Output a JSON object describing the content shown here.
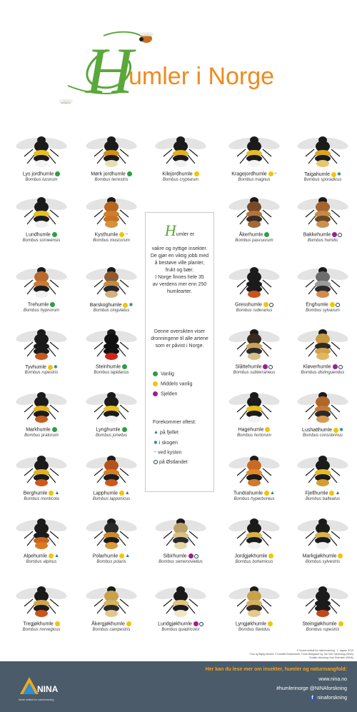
{
  "title": {
    "cap": "H",
    "rest": "umler i Norge"
  },
  "legend_colors": {
    "common": "#2e9e45",
    "medium": "#f2c500",
    "rare": "#9b1f91",
    "marker": "#1a7f86"
  },
  "bees": [
    {
      "name": "Lys jordhumle",
      "latin": "Bombus lucorum",
      "freq": "common",
      "marks": [],
      "colors": [
        "#1b1b1b",
        "#e8c020",
        "#1b1b1b",
        "#f3f3f3"
      ]
    },
    {
      "name": "Mørk jordhumle",
      "latin": "Bombus terrestris",
      "freq": "common",
      "marks": [],
      "colors": [
        "#1b1b1b",
        "#d08f18",
        "#1b1b1b",
        "#e9ddb8"
      ]
    },
    {
      "name": "Kilejordhumle",
      "latin": "Bombus cryptarum",
      "freq": "medium",
      "marks": [],
      "colors": [
        "#1b1b1b",
        "#e0b220",
        "#1b1b1b",
        "#f1f1f1"
      ]
    },
    {
      "name": "Kragejordhumle",
      "latin": "Bombus magnus",
      "freq": "medium",
      "marks": [
        "coast"
      ],
      "colors": [
        "#1b1b1b",
        "#e6bd25",
        "#1b1b1b",
        "#f3f3f3"
      ]
    },
    {
      "name": "Taigahumle",
      "latin": "Bombus sporadicus",
      "freq": "medium",
      "marks": [
        "forest"
      ],
      "colors": [
        "#1b1b1b",
        "#d9a51f",
        "#1b1b1b",
        "#e6c770"
      ]
    },
    {
      "name": "Lundhumle",
      "latin": "Bombus soroeensis",
      "freq": "common",
      "marks": [],
      "colors": [
        "#1b1b1b",
        "#e8bf22",
        "#1b1b1b",
        "#f0f0f0"
      ]
    },
    {
      "name": "Kysthumle",
      "latin": "Bombus muscorum",
      "freq": "medium",
      "marks": [
        "coast"
      ],
      "colors": [
        "#b7661e",
        "#cf7f28",
        "#c77224",
        "#d8913b"
      ]
    },
    {
      "name": "Åkerhumle",
      "latin": "Bombus pascuorum",
      "freq": "common",
      "marks": [],
      "colors": [
        "#7a4a25",
        "#b0743f",
        "#3b2b22",
        "#a06a3a"
      ]
    },
    {
      "name": "Bakkehumle",
      "latin": "Bombus humilis",
      "freq": "rare",
      "marks": [
        "east"
      ],
      "colors": [
        "#a5652d",
        "#c48a46",
        "#6a4626",
        "#c9924f"
      ]
    },
    {
      "name": "Trehumle",
      "latin": "Bombus hypnorum",
      "freq": "common",
      "marks": [],
      "colors": [
        "#b96a2e",
        "#c97a38",
        "#1b1b1b",
        "#f1f1f1"
      ]
    },
    {
      "name": "Barskoghumle",
      "latin": "Bombus cingulatus",
      "freq": "medium",
      "marks": [
        "forest"
      ],
      "colors": [
        "#8f5a2c",
        "#bf8a4e",
        "#262626",
        "#d2b080"
      ]
    },
    {
      "name": "Gresshumle",
      "latin": "Bombus ruderarius",
      "freq": "medium",
      "marks": [
        "east"
      ],
      "colors": [
        "#1b1b1b",
        "#1b1b1b",
        "#1b1b1b",
        "#c9531f"
      ]
    },
    {
      "name": "Enghumle",
      "latin": "Bombus sylvarum",
      "freq": "medium",
      "marks": [
        "east"
      ],
      "colors": [
        "#6d6d6d",
        "#9a9a9a",
        "#2a2a2a",
        "#d48a4f"
      ]
    },
    {
      "name": "Tyvhumle",
      "latin": "Bombus rupestris",
      "freq": "medium",
      "marks": [
        "forest"
      ],
      "colors": [
        "#1b1b1b",
        "#1b1b1b",
        "#1b1b1b",
        "#c45a22"
      ]
    },
    {
      "name": "Steinhumle",
      "latin": "Bombus lapidarius",
      "freq": "common",
      "marks": [],
      "colors": [
        "#111111",
        "#111111",
        "#111111",
        "#d0261a"
      ]
    },
    {
      "name": "Slåttehumle",
      "latin": "Bombus subterraneus",
      "freq": "rare",
      "marks": [
        "east"
      ],
      "colors": [
        "#3a2a1f",
        "#c9a25a",
        "#2a2a2a",
        "#d8c08a"
      ]
    },
    {
      "name": "Kløverhumle",
      "latin": "Bombus distinguendus",
      "freq": "rare",
      "marks": [
        "east"
      ],
      "colors": [
        "#c79a3f",
        "#2a2a2a",
        "#d0a34a",
        "#e0b860"
      ]
    },
    {
      "name": "Markhumle",
      "latin": "Bombus pratorum",
      "freq": "common",
      "marks": [],
      "colors": [
        "#1b1b1b",
        "#e3b221",
        "#1b1b1b",
        "#c65d22"
      ]
    },
    {
      "name": "Lynghumle",
      "latin": "Bombus jonellus",
      "freq": "common",
      "marks": [],
      "colors": [
        "#1b1b1b",
        "#e8c024",
        "#1b1b1b",
        "#f2f2f2"
      ]
    },
    {
      "name": "Hagehumle",
      "latin": "Bombus hortorum",
      "freq": "medium",
      "marks": [],
      "colors": [
        "#1b1b1b",
        "#e6bd22",
        "#1b1b1b",
        "#f2f2f2"
      ]
    },
    {
      "name": "Lushatthumle",
      "latin": "Bombus consobrinus",
      "freq": "medium",
      "marks": [
        "forest"
      ],
      "colors": [
        "#b0652a",
        "#c27a36",
        "#2a2a2a",
        "#d89a52"
      ]
    },
    {
      "name": "Berghumle",
      "latin": "Bombus monticola",
      "freq": "medium",
      "marks": [
        "mountain"
      ],
      "colors": [
        "#1b1b1b",
        "#e0b322",
        "#1b1b1b",
        "#d0561d"
      ]
    },
    {
      "name": "Lapphumle",
      "latin": "Bombus lapponicus",
      "freq": "medium",
      "marks": [
        "mountain"
      ],
      "colors": [
        "#b4521d",
        "#d37d2a",
        "#1b1b1b",
        "#c75a1f"
      ]
    },
    {
      "name": "Tundrahumle",
      "latin": "Bombus hyperboreus",
      "freq": "medium",
      "marks": [
        "mountain"
      ],
      "colors": [
        "#c86a22",
        "#e08a2a",
        "#1b1b1b",
        "#cf7a30"
      ]
    },
    {
      "name": "Fjellhumle",
      "latin": "Bombus balteatus",
      "freq": "medium",
      "marks": [
        "mountain"
      ],
      "colors": [
        "#1b1b1b",
        "#e6ba23",
        "#1b1b1b",
        "#d59d2f"
      ]
    },
    {
      "name": "Alpehumle",
      "latin": "Bombus alpinus",
      "freq": "medium",
      "marks": [
        "mountain"
      ],
      "colors": [
        "#1b1b1b",
        "#1b1b1b",
        "#c8641c",
        "#d97a22"
      ]
    },
    {
      "name": "Polarhumle",
      "latin": "Bombus polaris",
      "freq": "medium",
      "marks": [
        "mountain"
      ],
      "colors": [
        "#2a2a2a",
        "#c98b2e",
        "#1b1b1b",
        "#d99a3a"
      ]
    },
    {
      "name": "Sibirhumle",
      "latin": "Bombus semenoviellus",
      "freq": "rare",
      "marks": [
        "east"
      ],
      "colors": [
        "#bca267",
        "#d7c188",
        "#2a2a2a",
        "#e6d6a6"
      ]
    },
    {
      "name": "Jordgjøkhumle",
      "latin": "Bombus bohemicus",
      "freq": "medium",
      "marks": [],
      "colors": [
        "#1b1b1b",
        "#d6b04a",
        "#1b1b1b",
        "#f0f0f0"
      ]
    },
    {
      "name": "Markgjøkhumle",
      "latin": "Bombus sylvestris",
      "freq": "medium",
      "marks": [],
      "colors": [
        "#1b1b1b",
        "#d8b24b",
        "#1b1b1b",
        "#efefef"
      ]
    },
    {
      "name": "Tregjøkhumle",
      "latin": "Bombus norvegicus",
      "freq": "medium",
      "marks": [],
      "colors": [
        "#1b1b1b",
        "#d2a54a",
        "#1b1b1b",
        "#c9541f"
      ]
    },
    {
      "name": "Åkergjøkhumle",
      "latin": "Bombus campestris",
      "freq": "medium",
      "marks": [],
      "colors": [
        "#c9a04c",
        "#d8b560",
        "#2a2a2a",
        "#e1c88c"
      ]
    },
    {
      "name": "Lundgjøkhumle",
      "latin": "Bombus quadricolor",
      "freq": "rare",
      "marks": [
        "east"
      ],
      "colors": [
        "#1b1b1b",
        "#e0c580",
        "#1b1b1b",
        "#efe6c8"
      ]
    },
    {
      "name": "Lyngjøkhumle",
      "latin": "Bombus flavidus",
      "freq": "medium",
      "marks": [],
      "colors": [
        "#c7a14c",
        "#d4b363",
        "#3a2b20",
        "#e2c98e"
      ]
    },
    {
      "name": "Steingjøkhumle",
      "latin": "Bombus rupestris",
      "freq": "medium",
      "marks": [],
      "colors": [
        "#1b1b1b",
        "#1b1b1b",
        "#1b1b1b",
        "#c0481c"
      ]
    }
  ],
  "info": {
    "intro_cap": "H",
    "intro_line1": "umler er",
    "intro_lines": [
      "vakre og nyttige insekter.",
      "De gjør en viktig jobb med",
      "å bestøve ville planter,",
      "frukt og bær.",
      "I Norge finnes hele 35",
      "av verdens mer enn 250",
      "humlearter."
    ],
    "overview_lines": [
      "Denne oversikten viser",
      "dronningene til alle artene",
      "som er påvist i Norge."
    ],
    "legend_common": "Vanlig",
    "legend_medium": "Middels vanlig",
    "legend_rare": "Sjelden",
    "occurs_title": "Forekommer oftest:",
    "occurs_mountain": "på fjellet",
    "occurs_forest": "i skogen",
    "occurs_coast": "ved kysten",
    "occurs_east": "på Østlandet"
  },
  "credits": {
    "line1": "© Norsk institutt for naturforskning · 1. utgave 2019",
    "line2": "Foto og faglig innhold: © Annette Bossendahl, Frode Ødegaard og Jan Ove Gjershaug (NINA)",
    "line3": "Grafisk utforming: Kari Sivertsen (NINA)"
  },
  "footer": {
    "heading": "Her kan du lese mer om insekter, humler og naturmangfold:",
    "website": "www.nina.no",
    "hashtags": "#humlerinorge  @NINAforskning",
    "facebook": "ninaforskning",
    "logo_text": "NINA",
    "logo_sub": "Norsk institutt for naturforskning"
  }
}
